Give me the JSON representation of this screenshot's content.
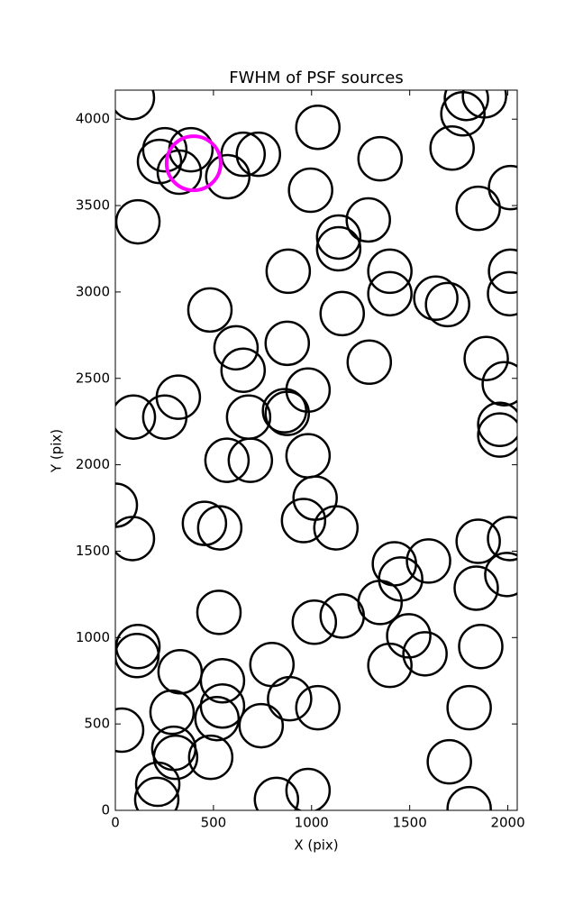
{
  "chart_data": {
    "type": "scatter",
    "title": "FWHM of PSF sources",
    "xlabel": "X (pix)",
    "ylabel": "Y (pix)",
    "x": [
      87,
      225,
      252,
      385,
      326,
      573,
      651,
      729,
      115,
      1032,
      995,
      1138,
      1138,
      1289,
      1349,
      881,
      1399,
      1399,
      1633,
      1693,
      1156,
      482,
      615,
      651,
      876,
      982,
      1294,
      862,
      876,
      321,
      92,
      252,
      679,
      569,
      688,
      982,
      1018,
      959,
      1124,
      0,
      87,
      454,
      532,
      528,
      115,
      110,
      330,
      546,
      798,
      888,
      1032,
      1014,
      1156,
      1349,
      1422,
      1454,
      1596,
      1495,
      1578,
      1399,
      1862,
      1839,
      1849,
      2009,
      1995,
      1959,
      1959,
      1982,
      1890,
      2014,
      2009,
      2014,
      1849,
      1716,
      1771,
      1789,
      1881,
      743,
      289,
      546,
      518,
      298,
      307,
      486,
      216,
      211,
      32,
      821,
      982,
      1702,
      1803,
      1803
    ],
    "values": [
      4125,
      3755,
      3823,
      3823,
      3693,
      3667,
      3797,
      3797,
      3406,
      3953,
      3589,
      3318,
      3250,
      3417,
      3771,
      3120,
      3120,
      2990,
      2964,
      2927,
      2875,
      2896,
      2677,
      2547,
      2703,
      2432,
      2594,
      2313,
      2297,
      2391,
      2276,
      2276,
      2276,
      2026,
      2026,
      2052,
      1807,
      1677,
      1635,
      1766,
      1573,
      1661,
      1635,
      1146,
      948,
      896,
      802,
      750,
      844,
      646,
      594,
      1089,
      1125,
      1203,
      1427,
      1339,
      1443,
      1010,
      906,
      839,
      948,
      1286,
      1557,
      1573,
      1365,
      2234,
      2172,
      2469,
      2615,
      3120,
      2990,
      3604,
      3484,
      3833,
      4031,
      4120,
      4135,
      490,
      568,
      604,
      531,
      359,
      307,
      307,
      151,
      63,
      464,
      63,
      115,
      281,
      594,
      10
    ],
    "color": "#000000",
    "highlight": {
      "x": 399,
      "y": 3745,
      "color": "#ff00ff"
    },
    "xlim": [
      0,
      2048
    ],
    "ylim": [
      0,
      4168
    ],
    "xticks": [
      0,
      500,
      1000,
      1500,
      2000
    ],
    "yticks": [
      0,
      500,
      1000,
      1500,
      2000,
      2500,
      3000,
      3500,
      4000
    ]
  }
}
